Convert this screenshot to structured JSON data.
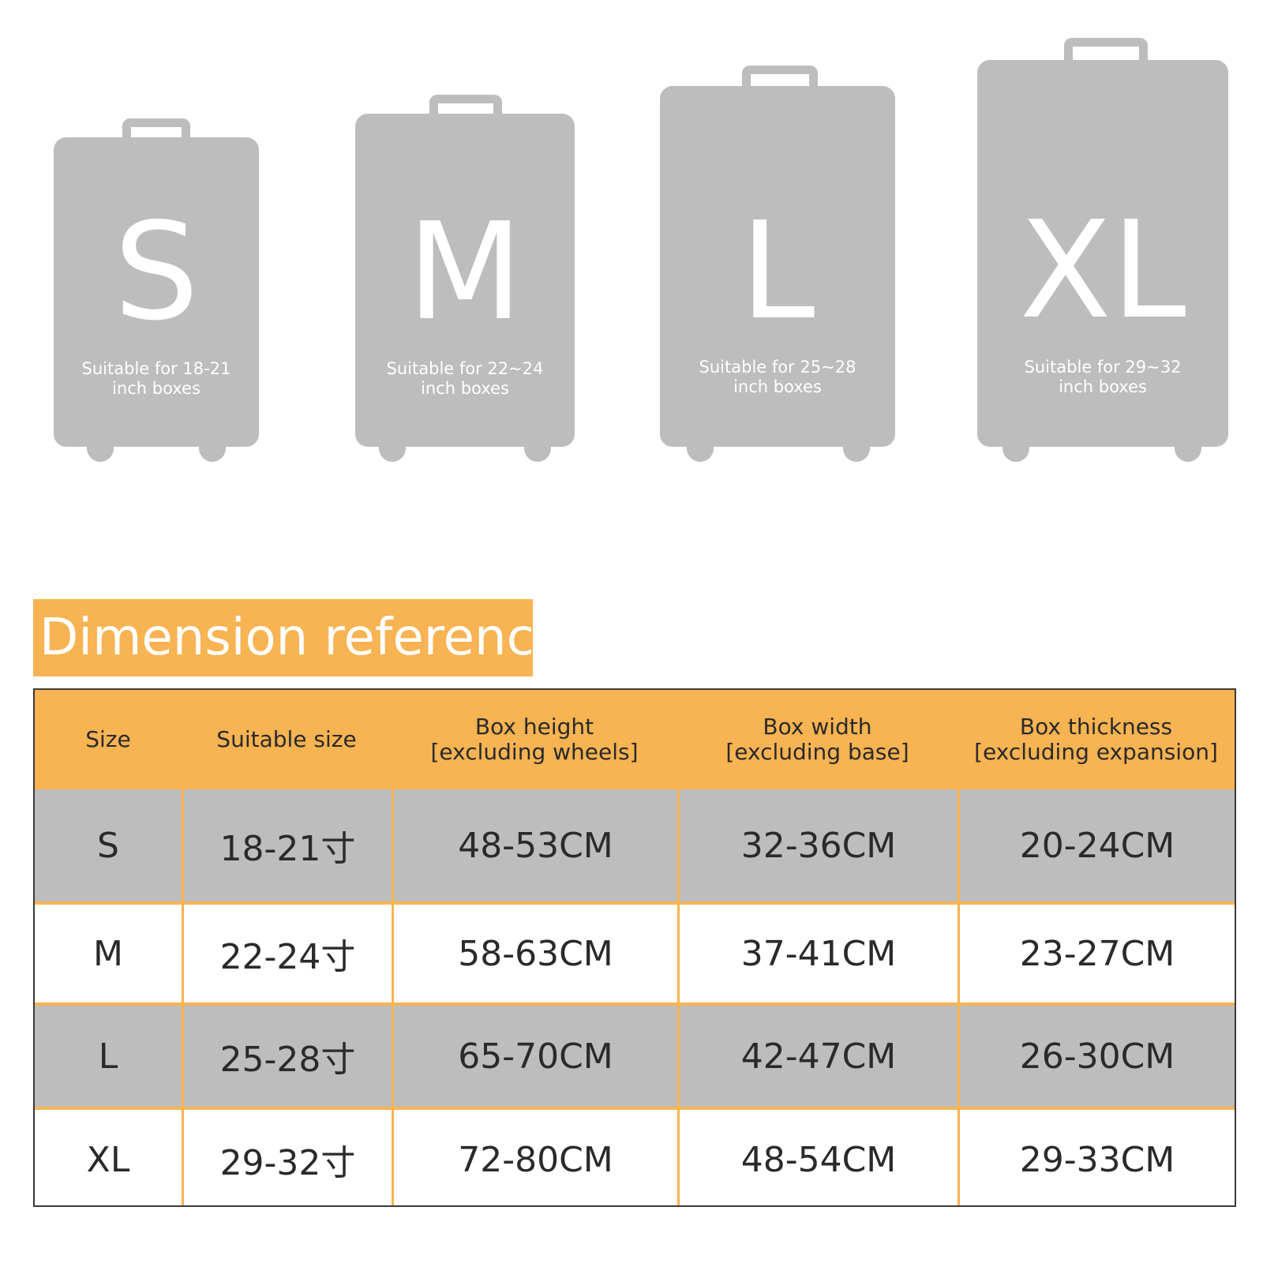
{
  "suitcases": [
    {
      "letter": "S",
      "caption_line1": "Suitable for 18-21",
      "caption_line2": "inch boxes"
    },
    {
      "letter": "M",
      "caption_line1": "Suitable for 22~24",
      "caption_line2": "inch boxes"
    },
    {
      "letter": "L",
      "caption_line1": "Suitable for 25~28",
      "caption_line2": "inch boxes"
    },
    {
      "letter": "XL",
      "caption_line1": "Suitable for 29~32",
      "caption_line2": "inch boxes"
    }
  ],
  "dimension_title": "Dimension reference",
  "table": {
    "headers": [
      {
        "line1": "Size",
        "line2": ""
      },
      {
        "line1": "Suitable size",
        "line2": ""
      },
      {
        "line1": "Box height",
        "line2": "[excluding wheels]"
      },
      {
        "line1": "Box width",
        "line2": "[excluding base]"
      },
      {
        "line1": "Box thickness",
        "line2": "[excluding expansion]"
      }
    ],
    "rows": [
      {
        "size": "S",
        "suitable": "18-21寸",
        "height": "48-53CM",
        "width": "32-36CM",
        "thickness": "20-24CM"
      },
      {
        "size": "M",
        "suitable": "22-24寸",
        "height": "58-63CM",
        "width": "37-41CM",
        "thickness": "23-27CM"
      },
      {
        "size": "L",
        "suitable": "25-28寸",
        "height": "65-70CM",
        "width": "42-47CM",
        "thickness": "26-30CM"
      },
      {
        "size": "XL",
        "suitable": "29-32寸",
        "height": "72-80CM",
        "width": "48-54CM",
        "thickness": "29-33CM"
      }
    ]
  },
  "colors": {
    "accent_orange": "#f8b352",
    "suitcase_grey": "#bdbdbd",
    "row_grey": "#bdbdbd",
    "text_dark": "#2a2a2a"
  }
}
